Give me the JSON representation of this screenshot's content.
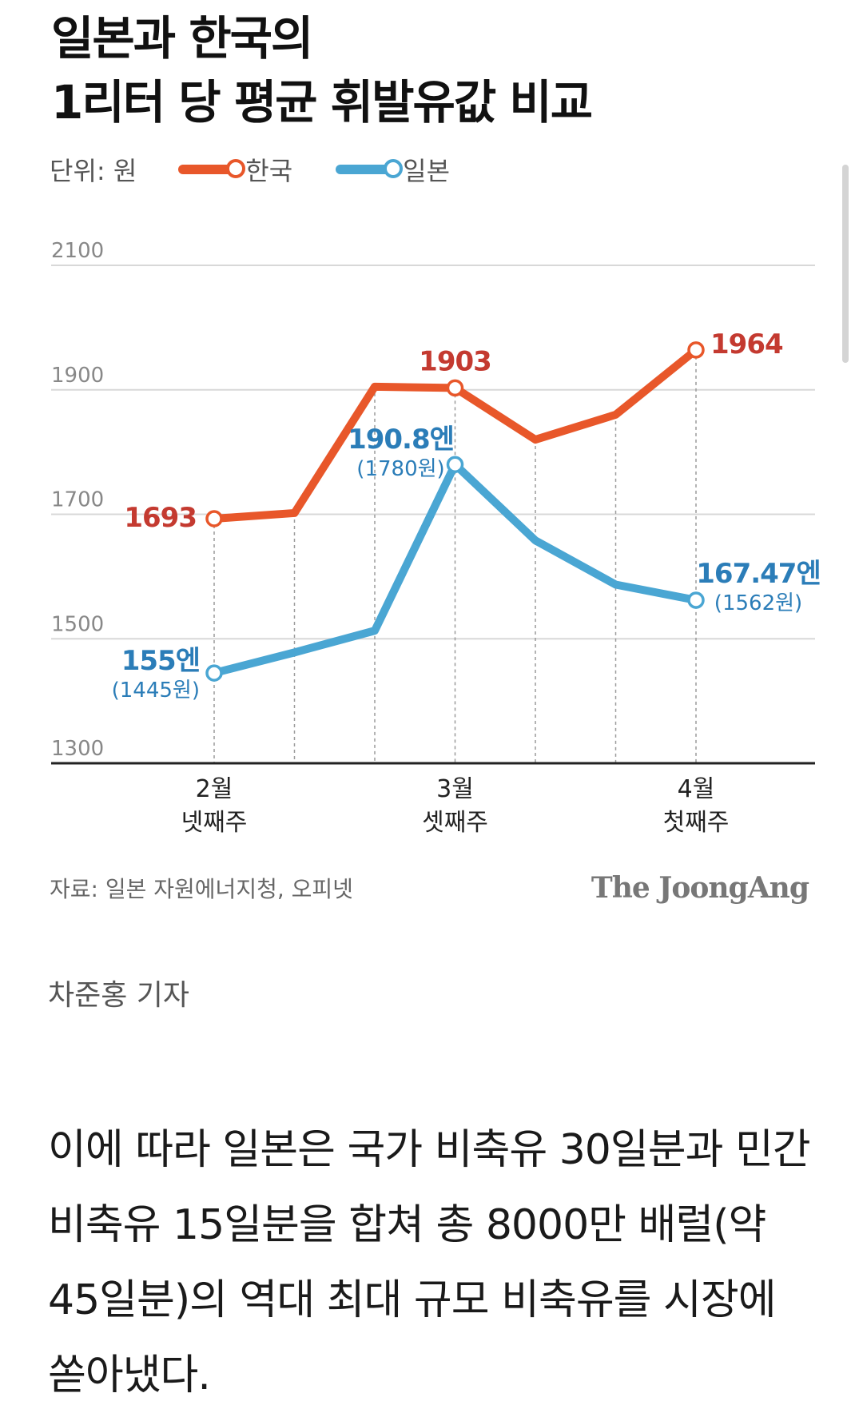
{
  "title_lines": [
    "일본과 한국의",
    "1리터 당 평균 휘발유값 비교"
  ],
  "legend": {
    "unit": "단위: 원",
    "korea": "한국",
    "japan": "일본"
  },
  "colors": {
    "korea": "#e8572a",
    "japan": "#4aa6d3",
    "korea_label": "#c43a30",
    "japan_label": "#2b7db8",
    "grid": "#d8d8d8",
    "tick": "#888888"
  },
  "chart_data": {
    "type": "line",
    "ylim": [
      1300,
      2100
    ],
    "yticks": [
      1300,
      1500,
      1700,
      1900,
      2100
    ],
    "x": [
      0,
      1,
      2,
      3,
      4,
      5,
      6
    ],
    "x_tick_labels": [
      {
        "index": 0,
        "lines": [
          "2월",
          "넷째주"
        ]
      },
      {
        "index": 3,
        "lines": [
          "3월",
          "셋째주"
        ]
      },
      {
        "index": 6,
        "lines": [
          "4월",
          "첫째주"
        ]
      }
    ],
    "series": [
      {
        "name": "한국",
        "color": "#e8572a",
        "values": [
          1693,
          1702,
          1905,
          1903,
          1820,
          1860,
          1964
        ]
      },
      {
        "name": "일본",
        "color": "#4aa6d3",
        "values": [
          1445,
          1478,
          1513,
          1780,
          1658,
          1587,
          1562
        ]
      }
    ],
    "annotations": [
      {
        "series": "한국",
        "index": 0,
        "text": "1693"
      },
      {
        "series": "한국",
        "index": 3,
        "text": "1903"
      },
      {
        "series": "한국",
        "index": 6,
        "text": "1964"
      },
      {
        "series": "일본",
        "index": 0,
        "text": "155엔",
        "sub": "(1445원)"
      },
      {
        "series": "일본",
        "index": 3,
        "text": "190.8엔",
        "sub": "(1780원)"
      },
      {
        "series": "일본",
        "index": 6,
        "text": "167.47엔",
        "sub": "(1562원)"
      }
    ]
  },
  "source": "자료: 일본 자원에너지청, 오피넷",
  "brand": "The JoongAng",
  "reporter": "차준홍 기자",
  "article_lines": [
    "이에 따라 일본은 국가 비축유 30일분과 민간",
    "비축유 15일분을 합쳐 총 8000만 배럴(약",
    "45일분)의 역대 최대 규모 비축유를 시장에",
    "쏟아냈다."
  ]
}
